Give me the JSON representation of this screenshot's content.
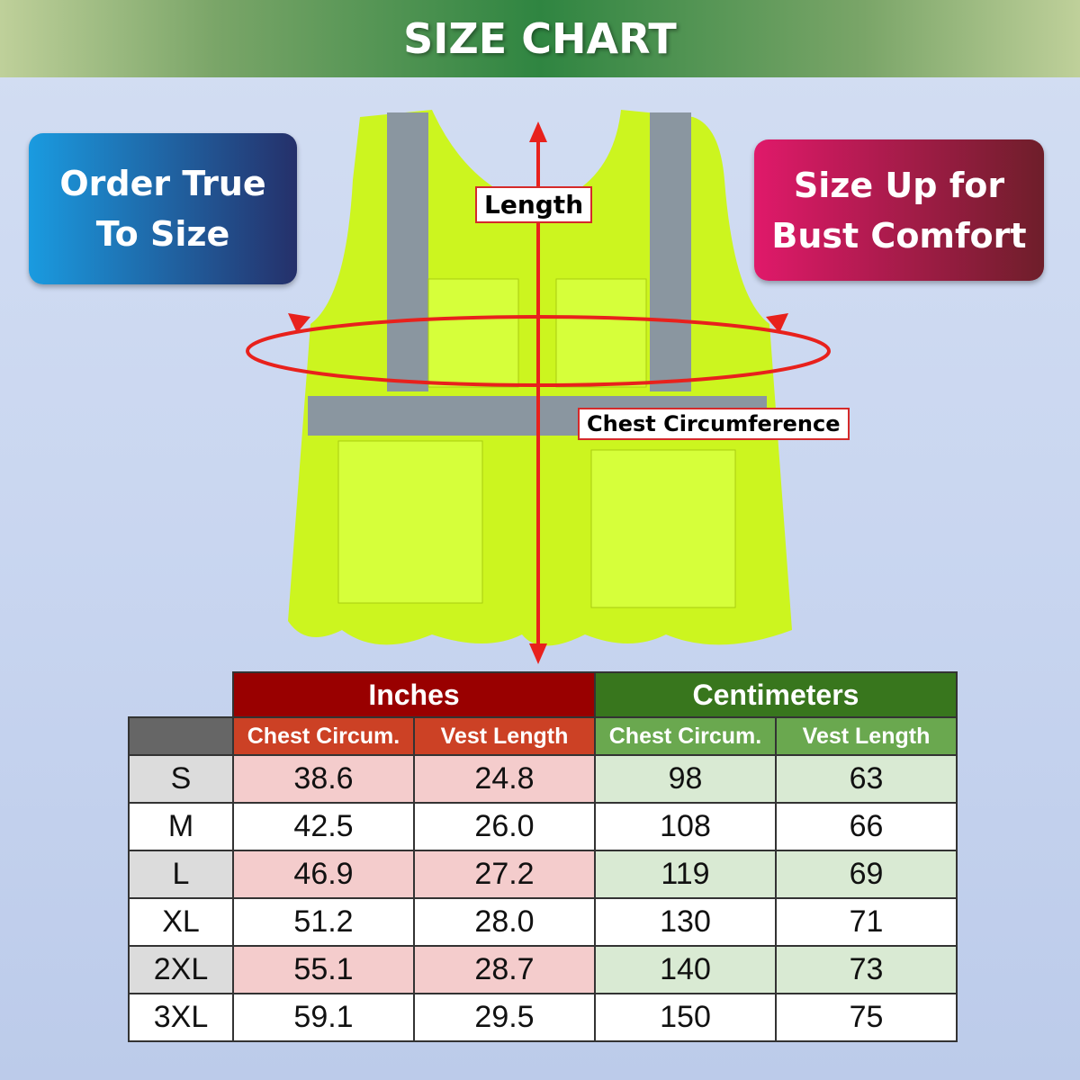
{
  "title": "SIZE CHART",
  "badges": {
    "left": [
      "Order True",
      "To Size"
    ],
    "right": [
      "Size Up for",
      "Bust Comfort"
    ]
  },
  "labels": {
    "length": "Length",
    "chest": "Chest Circumference"
  },
  "colors": {
    "banner": "#2f8541",
    "inches_header": "#990000",
    "inches_sub": "#cc4125",
    "cm_header": "#38761d",
    "cm_sub": "#6aa84f",
    "vest": "#ccff22",
    "arrow": "#e8211c"
  },
  "table": {
    "groups": [
      "Inches",
      "Centimeters"
    ],
    "columns": [
      "Chest Circum.",
      "Vest Length",
      "Chest Circum.",
      "Vest Length"
    ],
    "rows": [
      {
        "size": "S",
        "values": [
          "38.6",
          "24.8",
          "98",
          "63"
        ]
      },
      {
        "size": "M",
        "values": [
          "42.5",
          "26.0",
          "108",
          "66"
        ]
      },
      {
        "size": "L",
        "values": [
          "46.9",
          "27.2",
          "119",
          "69"
        ]
      },
      {
        "size": "XL",
        "values": [
          "51.2",
          "28.0",
          "130",
          "71"
        ]
      },
      {
        "size": "2XL",
        "values": [
          "55.1",
          "28.7",
          "140",
          "73"
        ]
      },
      {
        "size": "3XL",
        "values": [
          "59.1",
          "29.5",
          "150",
          "75"
        ]
      }
    ]
  }
}
